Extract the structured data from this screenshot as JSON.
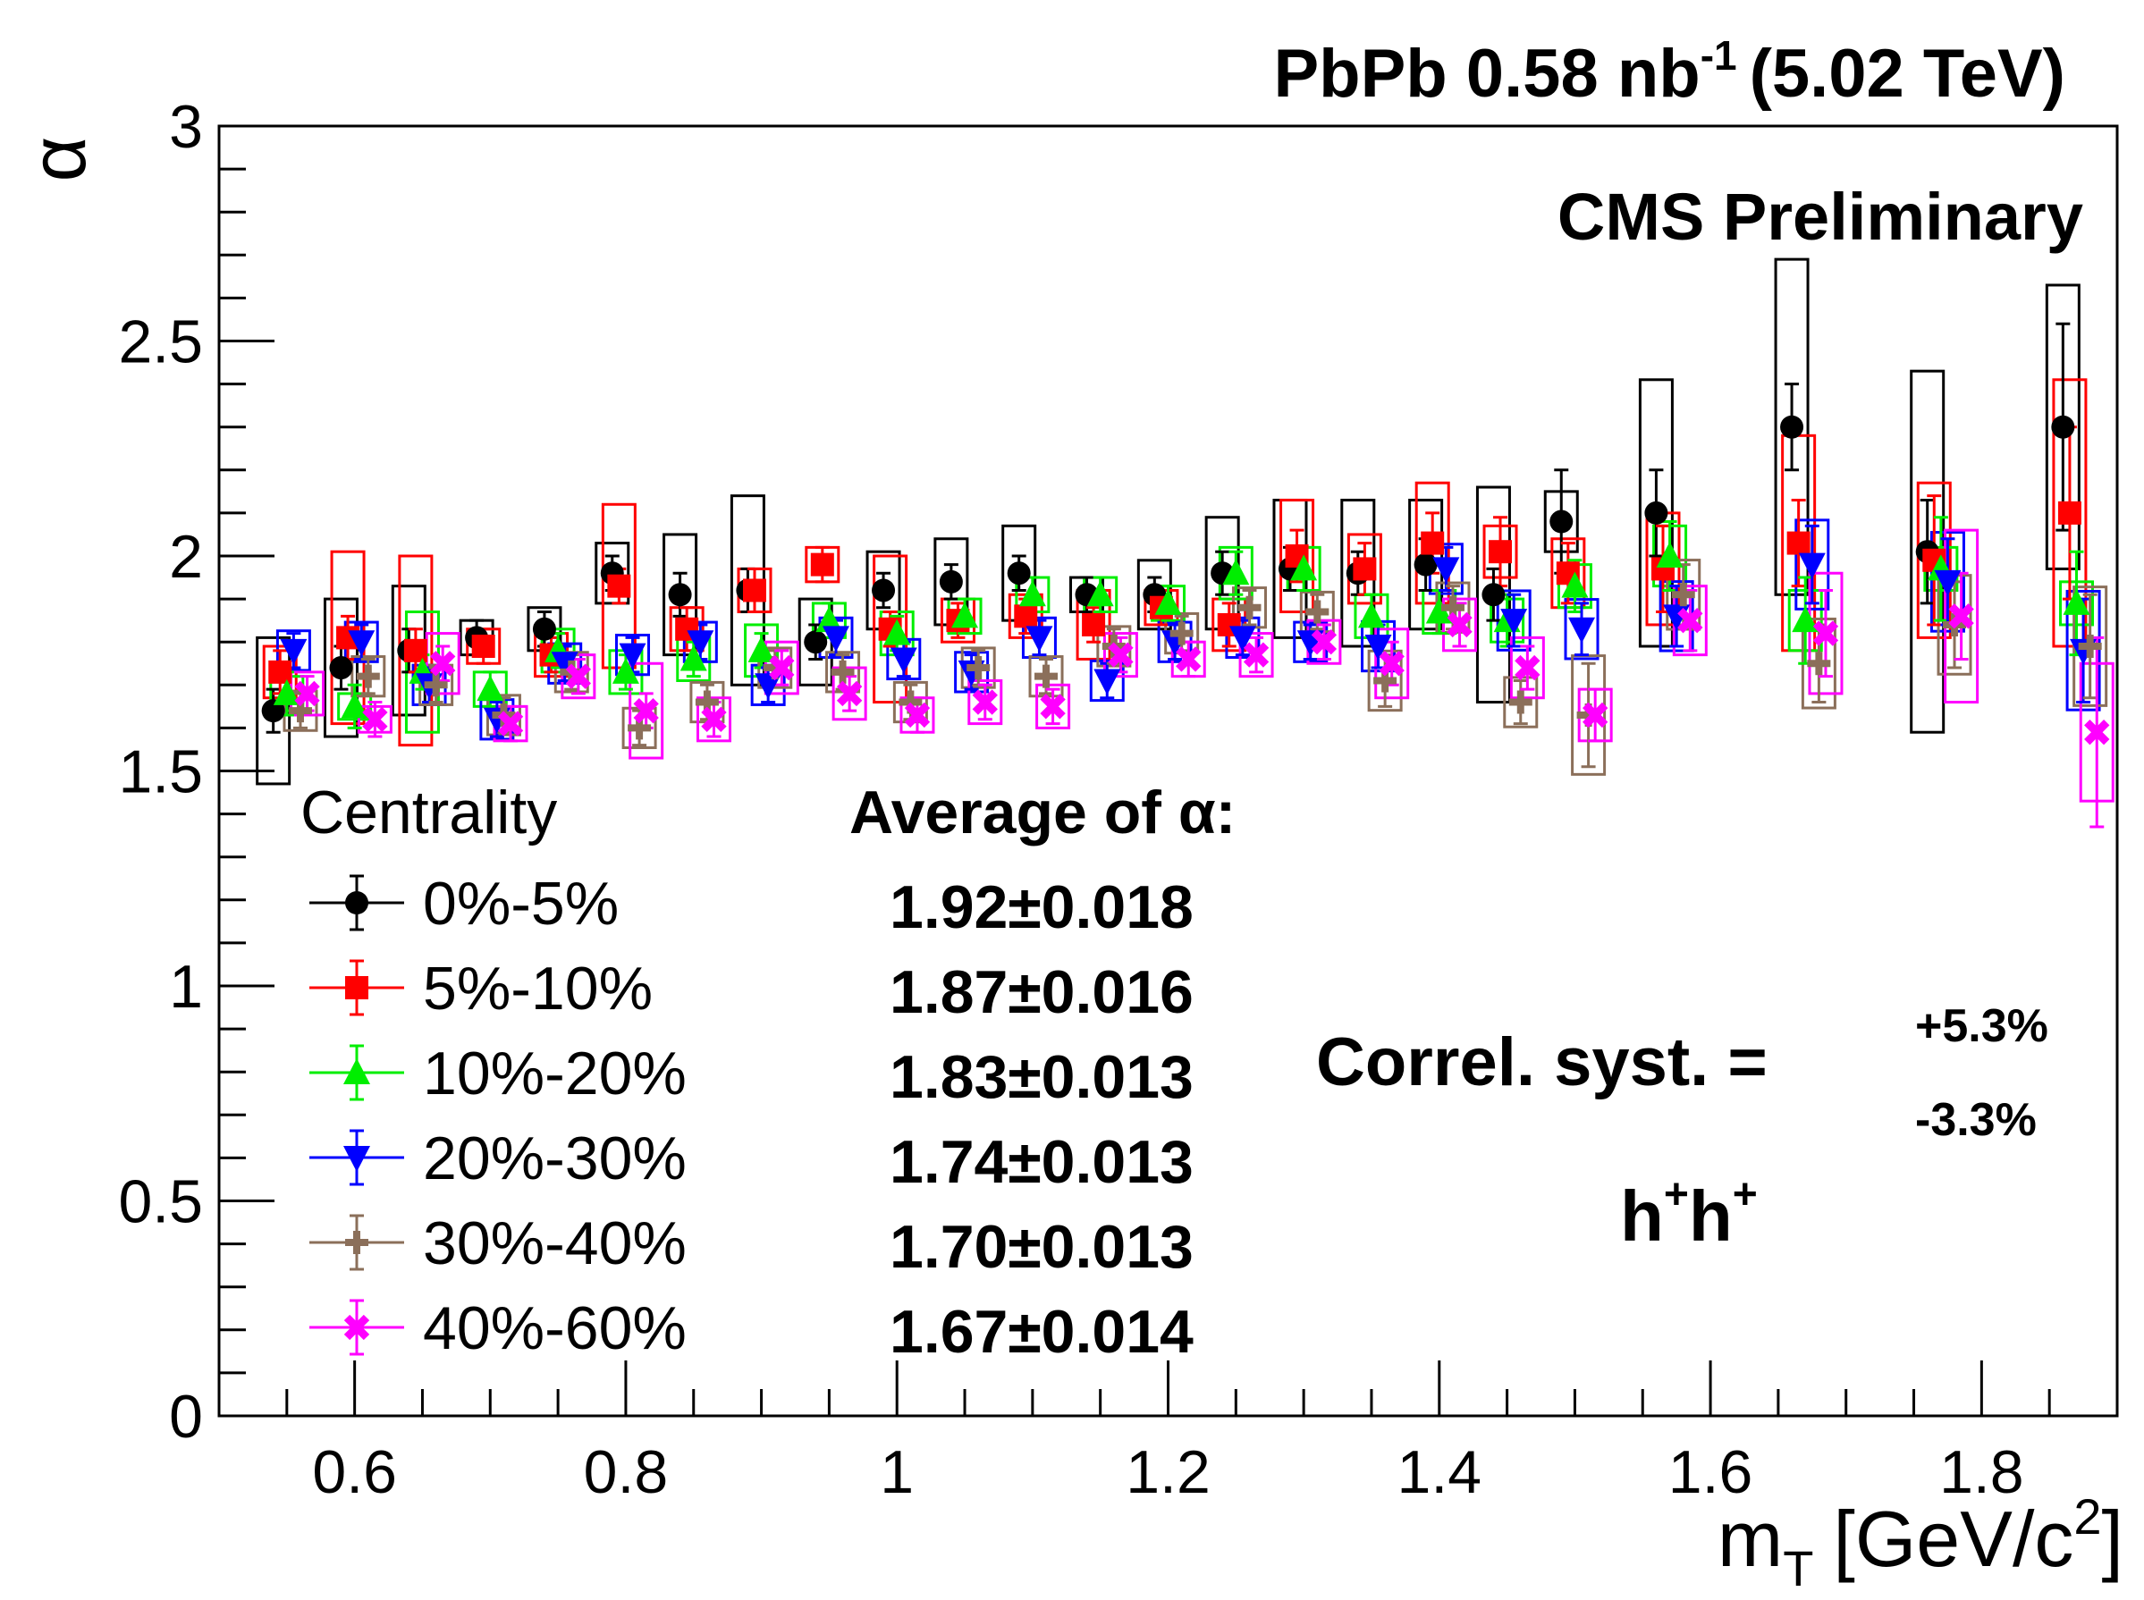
{
  "chart_data": {
    "type": "scatter",
    "title": "PbPb 0.58 nb",
    "title_sup": "-1",
    "title_suffix": "(5.02 TeV)",
    "label": "CMS Preliminary",
    "ylabel": "α",
    "xlabel_main": "m",
    "xlabel_sub": "T",
    "xlabel_unit": "[GeV/c",
    "xlabel_unit_sup": "2",
    "xlabel_close": "]",
    "xlim": [
      0.5,
      1.9
    ],
    "ylim": [
      0,
      3
    ],
    "x_ticks": [
      {
        "value": 0.6,
        "label": "0.6"
      },
      {
        "value": 0.8,
        "label": "0.8"
      },
      {
        "value": 1.0,
        "label": "1"
      },
      {
        "value": 1.2,
        "label": "1.2"
      },
      {
        "value": 1.4,
        "label": "1.4"
      },
      {
        "value": 1.6,
        "label": "1.6"
      },
      {
        "value": 1.8,
        "label": "1.8"
      }
    ],
    "y_ticks": [
      {
        "value": 0,
        "label": "0"
      },
      {
        "value": 0.5,
        "label": "0.5"
      },
      {
        "value": 1.0,
        "label": "1"
      },
      {
        "value": 1.5,
        "label": "1.5"
      },
      {
        "value": 2.0,
        "label": "2"
      },
      {
        "value": 2.5,
        "label": "2.5"
      },
      {
        "value": 3.0,
        "label": "3"
      }
    ],
    "legend_title": "Centrality",
    "average_title": "Average of α:",
    "correl_label": "Correl. syst. =",
    "correl_plus": "+5.3%",
    "correl_minus": "-3.3%",
    "pair_base": "h",
    "pair_sup": "+",
    "series": [
      {
        "name": "0%-5%",
        "average": "1.92±0.018",
        "color": "#000000",
        "marker": "circle",
        "x": [
          0.54,
          0.59,
          0.64,
          0.69,
          0.74,
          0.79,
          0.84,
          0.89,
          0.94,
          0.99,
          1.04,
          1.09,
          1.14,
          1.19,
          1.24,
          1.29,
          1.34,
          1.39,
          1.44,
          1.49,
          1.56,
          1.66,
          1.76,
          1.86
        ],
        "y": [
          1.64,
          1.74,
          1.78,
          1.81,
          1.83,
          1.96,
          1.91,
          1.92,
          1.8,
          1.92,
          1.94,
          1.96,
          1.91,
          1.91,
          1.96,
          1.97,
          1.96,
          1.98,
          1.91,
          2.08,
          2.1,
          2.3,
          2.01,
          2.3
        ],
        "stat": [
          0.05,
          0.05,
          0.05,
          0.04,
          0.04,
          0.04,
          0.05,
          0.05,
          0.04,
          0.04,
          0.04,
          0.04,
          0.04,
          0.04,
          0.05,
          0.05,
          0.05,
          0.06,
          0.06,
          0.12,
          0.1,
          0.1,
          0.12,
          0.24
        ],
        "sys": [
          0.17,
          0.16,
          0.15,
          0.04,
          0.05,
          0.07,
          0.14,
          0.22,
          0.1,
          0.09,
          0.1,
          0.11,
          0.04,
          0.08,
          0.13,
          0.16,
          0.17,
          0.15,
          0.25,
          0.07,
          0.31,
          0.39,
          0.42,
          0.33
        ]
      },
      {
        "name": "5%-10%",
        "average": "1.87±0.016",
        "color": "#ff0000",
        "marker": "square",
        "x": [
          0.545,
          0.595,
          0.645,
          0.695,
          0.745,
          0.795,
          0.845,
          0.895,
          0.945,
          0.995,
          1.045,
          1.095,
          1.145,
          1.195,
          1.245,
          1.295,
          1.345,
          1.395,
          1.445,
          1.495,
          1.565,
          1.665,
          1.765,
          1.865
        ],
        "y": [
          1.73,
          1.81,
          1.78,
          1.79,
          1.77,
          1.93,
          1.83,
          1.92,
          1.98,
          1.83,
          1.85,
          1.86,
          1.84,
          1.88,
          1.84,
          2.0,
          1.97,
          2.03,
          2.01,
          1.96,
          1.97,
          2.03,
          1.99,
          2.1
        ],
        "stat": [
          0.05,
          0.05,
          0.05,
          0.04,
          0.04,
          0.04,
          0.05,
          0.05,
          0.04,
          0.04,
          0.04,
          0.04,
          0.04,
          0.04,
          0.05,
          0.06,
          0.06,
          0.07,
          0.08,
          0.07,
          0.1,
          0.1,
          0.15,
          0.2
        ],
        "sys": [
          0.06,
          0.2,
          0.22,
          0.04,
          0.05,
          0.19,
          0.05,
          0.05,
          0.04,
          0.17,
          0.05,
          0.05,
          0.08,
          0.04,
          0.06,
          0.13,
          0.08,
          0.14,
          0.06,
          0.08,
          0.13,
          0.25,
          0.18,
          0.31
        ]
      },
      {
        "name": "10%-20%",
        "average": "1.83±0.013",
        "color": "#00ee00",
        "marker": "triangle-up",
        "x": [
          0.55,
          0.6,
          0.65,
          0.7,
          0.75,
          0.8,
          0.85,
          0.9,
          0.95,
          1.0,
          1.05,
          1.1,
          1.15,
          1.2,
          1.25,
          1.3,
          1.35,
          1.4,
          1.45,
          1.5,
          1.57,
          1.67,
          1.77,
          1.87
        ],
        "y": [
          1.68,
          1.65,
          1.73,
          1.69,
          1.78,
          1.73,
          1.76,
          1.78,
          1.85,
          1.82,
          1.86,
          1.91,
          1.91,
          1.89,
          1.96,
          1.97,
          1.86,
          1.87,
          1.85,
          1.93,
          2.0,
          1.85,
          1.97,
          1.89
        ],
        "stat": [
          0.05,
          0.05,
          0.04,
          0.04,
          0.04,
          0.04,
          0.04,
          0.04,
          0.04,
          0.04,
          0.04,
          0.04,
          0.04,
          0.04,
          0.05,
          0.05,
          0.05,
          0.05,
          0.06,
          0.06,
          0.08,
          0.1,
          0.12,
          0.12
        ],
        "sys": [
          0.04,
          0.03,
          0.14,
          0.04,
          0.05,
          0.05,
          0.05,
          0.06,
          0.04,
          0.05,
          0.04,
          0.04,
          0.04,
          0.04,
          0.06,
          0.05,
          0.05,
          0.05,
          0.05,
          0.05,
          0.07,
          0.07,
          0.05,
          0.05
        ]
      },
      {
        "name": "20%-30%",
        "average": "1.74±0.013",
        "color": "#0000ff",
        "marker": "triangle-down",
        "x": [
          0.555,
          0.605,
          0.655,
          0.705,
          0.755,
          0.805,
          0.855,
          0.905,
          0.955,
          1.005,
          1.055,
          1.105,
          1.155,
          1.205,
          1.255,
          1.305,
          1.355,
          1.405,
          1.455,
          1.505,
          1.575,
          1.675,
          1.775,
          1.875
        ],
        "y": [
          1.78,
          1.8,
          1.7,
          1.62,
          1.75,
          1.77,
          1.8,
          1.7,
          1.81,
          1.76,
          1.73,
          1.81,
          1.71,
          1.8,
          1.81,
          1.8,
          1.79,
          1.97,
          1.85,
          1.83,
          1.86,
          1.98,
          1.94,
          1.78
        ],
        "stat": [
          0.04,
          0.04,
          0.04,
          0.04,
          0.04,
          0.04,
          0.04,
          0.04,
          0.04,
          0.04,
          0.04,
          0.04,
          0.04,
          0.04,
          0.04,
          0.04,
          0.05,
          0.05,
          0.06,
          0.06,
          0.07,
          0.09,
          0.1,
          0.12
        ]
      },
      {
        "name": "30%-40%",
        "average": "1.70±0.013",
        "color": "#8b6f5a",
        "marker": "plus",
        "x": [
          0.56,
          0.61,
          0.66,
          0.71,
          0.76,
          0.81,
          0.86,
          0.91,
          0.96,
          1.01,
          1.06,
          1.11,
          1.16,
          1.21,
          1.26,
          1.31,
          1.36,
          1.41,
          1.46,
          1.51,
          1.58,
          1.68,
          1.78,
          1.88
        ],
        "y": [
          1.64,
          1.72,
          1.7,
          1.63,
          1.73,
          1.6,
          1.66,
          1.74,
          1.73,
          1.66,
          1.74,
          1.72,
          1.79,
          1.82,
          1.88,
          1.87,
          1.71,
          1.88,
          1.66,
          1.63,
          1.91,
          1.75,
          1.84,
          1.79
        ],
        "stat": [
          0.04,
          0.04,
          0.04,
          0.04,
          0.04,
          0.04,
          0.04,
          0.04,
          0.04,
          0.04,
          0.04,
          0.04,
          0.04,
          0.04,
          0.04,
          0.04,
          0.06,
          0.05,
          0.05,
          0.12,
          0.07,
          0.09,
          0.1,
          0.12
        ]
      },
      {
        "name": "40%-60%",
        "average": "1.67±0.014",
        "color": "#ff00ff",
        "marker": "cross",
        "x": [
          0.565,
          0.615,
          0.665,
          0.715,
          0.765,
          0.815,
          0.865,
          0.915,
          0.965,
          1.015,
          1.065,
          1.115,
          1.165,
          1.215,
          1.265,
          1.315,
          1.365,
          1.415,
          1.465,
          1.515,
          1.585,
          1.685,
          1.785,
          1.885
        ],
        "y": [
          1.68,
          1.62,
          1.75,
          1.61,
          1.72,
          1.64,
          1.62,
          1.74,
          1.68,
          1.63,
          1.66,
          1.65,
          1.77,
          1.76,
          1.77,
          1.8,
          1.75,
          1.84,
          1.74,
          1.63,
          1.85,
          1.82,
          1.86,
          1.59
        ],
        "stat": [
          0.04,
          0.04,
          0.04,
          0.04,
          0.04,
          0.04,
          0.04,
          0.04,
          0.04,
          0.04,
          0.04,
          0.04,
          0.04,
          0.04,
          0.04,
          0.04,
          0.05,
          0.05,
          0.05,
          0.06,
          0.07,
          0.1,
          0.1,
          0.22
        ],
        "sys": [
          0.05,
          0.03,
          0.07,
          0.04,
          0.05,
          0.11,
          0.05,
          0.06,
          0.06,
          0.04,
          0.05,
          0.05,
          0.05,
          0.04,
          0.05,
          0.05,
          0.08,
          0.06,
          0.07,
          0.06,
          0.08,
          0.14,
          0.2,
          0.16
        ]
      }
    ]
  }
}
